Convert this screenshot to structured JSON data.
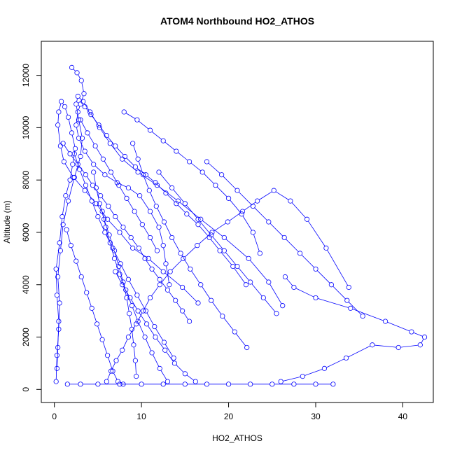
{
  "chart_data": {
    "type": "line",
    "title": "ATOM4 Northbound HO2_ATHOS",
    "xlabel": "HO2_ATHOS",
    "ylabel": "Altitude (m)",
    "xlim": [
      -1.5,
      43.5
    ],
    "ylim": [
      -500,
      13300
    ],
    "xticks": [
      0,
      10,
      20,
      30,
      40
    ],
    "yticks": [
      0,
      2000,
      4000,
      6000,
      8000,
      10000,
      12000
    ],
    "series_color": "#0000ff",
    "markers": "open-circle",
    "series": [
      {
        "x": [
          0.3,
          0.4,
          0.5,
          0.3,
          0.2,
          0.6,
          0.9,
          1.3,
          1.8,
          2.1,
          2.4,
          2.0,
          1.6,
          1.2,
          0.8,
          0.5,
          0.4,
          0.7,
          1.1,
          2.2,
          3.5,
          4.8,
          6.1,
          7.5,
          9.0,
          10.8,
          12.5,
          14.7,
          16.5
        ],
        "y": [
          800,
          1600,
          2600,
          3600,
          4600,
          5600,
          6600,
          7400,
          8000,
          8600,
          9200,
          9800,
          10400,
          10800,
          11000,
          10600,
          10100,
          9300,
          8700,
          8100,
          7600,
          7100,
          6500,
          6000,
          5400,
          5000,
          4500,
          3900,
          3300
        ]
      },
      {
        "x": [
          0.2,
          0.3,
          0.5,
          0.6,
          0.4,
          0.7,
          1.0,
          1.6,
          2.3,
          3.0,
          3.2,
          2.8,
          2.5,
          2.7,
          3.3,
          4.1,
          5.2,
          6.4,
          7.8,
          9.6,
          11.8,
          14.2,
          16.8,
          19.5,
          22.3,
          24.6,
          26.2
        ],
        "y": [
          300,
          1300,
          2300,
          3300,
          4300,
          5300,
          6300,
          7200,
          8100,
          8900,
          9600,
          10300,
          10900,
          11200,
          11000,
          10600,
          10000,
          9400,
          8800,
          8300,
          7800,
          7200,
          6500,
          5800,
          5000,
          4100,
          3200
        ]
      },
      {
        "x": [
          1.5,
          3.0,
          5.0,
          7.5,
          10.0,
          12.5,
          15.0,
          17.5,
          20.0,
          22.5,
          25.0,
          27.5,
          30.0,
          32.0
        ],
        "y": [
          200,
          200,
          200,
          200,
          200,
          200,
          200,
          200,
          200,
          200,
          200,
          200,
          200,
          200
        ]
      },
      {
        "x": [
          2.0,
          2.6,
          3.1,
          3.4,
          3.0,
          2.7,
          2.5,
          2.8,
          3.5,
          4.5,
          5.8,
          7.2,
          8.5,
          9.8,
          11.0,
          12.0,
          12.5,
          12.8,
          13.2
        ],
        "y": [
          12300,
          12100,
          11800,
          11300,
          10900,
          10600,
          10100,
          9600,
          9100,
          8600,
          8200,
          7900,
          7700,
          7400,
          6800,
          6200,
          5500,
          4800,
          4000
        ]
      },
      {
        "x": [
          26.0,
          28.5,
          31.0,
          33.5,
          36.5,
          39.5,
          42.0,
          42.5,
          41.0,
          38.0,
          34.0,
          30.0,
          27.5,
          26.5
        ],
        "y": [
          300,
          500,
          800,
          1200,
          1700,
          1600,
          1700,
          2000,
          2200,
          2600,
          3100,
          3500,
          3900,
          4300
        ]
      },
      {
        "x": [
          3.5,
          4.2,
          5.1,
          6.0,
          7.0,
          8.1,
          9.3,
          10.5,
          11.6,
          12.8,
          14.0,
          15.2,
          16.5,
          17.8,
          19.0,
          20.5,
          22.0
        ],
        "y": [
          10800,
          10500,
          10100,
          9700,
          9300,
          8900,
          8500,
          8200,
          7900,
          7500,
          7100,
          6700,
          6300,
          5800,
          5300,
          4700,
          4000
        ]
      },
      {
        "x": [
          6.0,
          6.5,
          7.1,
          7.8,
          8.5,
          9.4,
          10.2,
          11.0,
          12.1,
          13.3,
          14.8,
          16.4,
          18.1,
          19.9,
          21.6,
          23.3,
          25.2,
          27.1,
          29.0,
          31.2,
          33.8
        ],
        "y": [
          300,
          700,
          1100,
          1500,
          2000,
          2500,
          3000,
          3500,
          4000,
          4500,
          5000,
          5500,
          6000,
          6400,
          6800,
          7200,
          7600,
          7200,
          6500,
          5400,
          3900
        ]
      },
      {
        "x": [
          1.0,
          1.8,
          2.7,
          3.6,
          4.4,
          5.3,
          6.2,
          7.0,
          7.9,
          8.8,
          9.7,
          10.4,
          11.2,
          12.1,
          13.0,
          13.9,
          14.7,
          15.5
        ],
        "y": [
          9400,
          9000,
          8600,
          8200,
          7800,
          7400,
          7000,
          6600,
          6200,
          5800,
          5400,
          5000,
          4600,
          4200,
          3800,
          3400,
          3000,
          2600
        ]
      },
      {
        "x": [
          8.0,
          9.5,
          11.0,
          12.5,
          14.0,
          15.5,
          17.0,
          18.5,
          20.0,
          21.5,
          22.8,
          23.6
        ],
        "y": [
          10600,
          10300,
          9900,
          9500,
          9100,
          8700,
          8300,
          7800,
          7300,
          6700,
          6000,
          5200
        ]
      },
      {
        "x": [
          4.5,
          4.8,
          5.2,
          5.7,
          6.3,
          6.9,
          7.4,
          7.9,
          8.3,
          8.6,
          8.9,
          9.1,
          9.3,
          9.4
        ],
        "y": [
          8300,
          7700,
          7100,
          6500,
          5900,
          5300,
          4700,
          4100,
          3500,
          2900,
          2300,
          1700,
          1100,
          500
        ]
      },
      {
        "x": [
          2.3,
          2.9,
          3.6,
          4.3,
          5.0,
          5.8,
          6.7,
          7.6,
          8.5,
          9.5,
          10.5,
          11.5,
          12.6,
          13.7
        ],
        "y": [
          9000,
          8400,
          7800,
          7200,
          6600,
          6000,
          5400,
          4800,
          4200,
          3600,
          3000,
          2400,
          1800,
          1200
        ]
      },
      {
        "x": [
          17.5,
          19.2,
          21.0,
          22.8,
          24.6,
          26.4,
          28.2,
          30.0,
          31.8,
          33.6,
          35.4
        ],
        "y": [
          8700,
          8200,
          7600,
          7000,
          6400,
          5800,
          5200,
          4600,
          4000,
          3400,
          2800
        ]
      },
      {
        "x": [
          9.0,
          9.6,
          10.2,
          10.9,
          11.7,
          12.6,
          13.5,
          14.5,
          15.6,
          16.8,
          18.0,
          19.3,
          20.7,
          22.1
        ],
        "y": [
          9400,
          8800,
          8200,
          7600,
          7000,
          6400,
          5800,
          5200,
          4600,
          4000,
          3400,
          2800,
          2200,
          1600
        ]
      },
      {
        "x": [
          3.0,
          3.8,
          4.7,
          5.6,
          6.5,
          7.4,
          8.3,
          9.2,
          10.1,
          11.0,
          11.8
        ],
        "y": [
          10300,
          9800,
          9300,
          8800,
          8300,
          7800,
          7300,
          6800,
          6300,
          5800,
          5300
        ]
      },
      {
        "x": [
          5.5,
          5.9,
          6.4,
          6.9,
          7.5,
          8.2,
          8.9,
          9.6,
          10.4,
          11.2,
          12.1,
          13.0
        ],
        "y": [
          6800,
          6200,
          5600,
          5000,
          4400,
          3800,
          3200,
          2600,
          2000,
          1400,
          800,
          300
        ]
      },
      {
        "x": [
          12.0,
          13.5,
          15.0,
          16.5,
          18.0,
          19.5,
          21.0,
          22.5,
          24.0,
          25.5
        ],
        "y": [
          8300,
          7700,
          7100,
          6500,
          5900,
          5300,
          4700,
          4100,
          3500,
          2900
        ]
      },
      {
        "x": [
          1.4,
          1.9,
          2.5,
          3.1,
          3.7,
          4.3,
          4.9,
          5.5,
          6.1,
          6.7,
          7.3,
          7.9
        ],
        "y": [
          6100,
          5500,
          4900,
          4300,
          3700,
          3100,
          2500,
          1900,
          1300,
          700,
          300,
          200
        ]
      },
      {
        "x": [
          7.0,
          7.8,
          8.7,
          9.6,
          10.6,
          11.6,
          12.7,
          13.8,
          15.0,
          16.2
        ],
        "y": [
          4500,
          4000,
          3500,
          3000,
          2500,
          2000,
          1500,
          1000,
          600,
          300
        ]
      }
    ]
  }
}
